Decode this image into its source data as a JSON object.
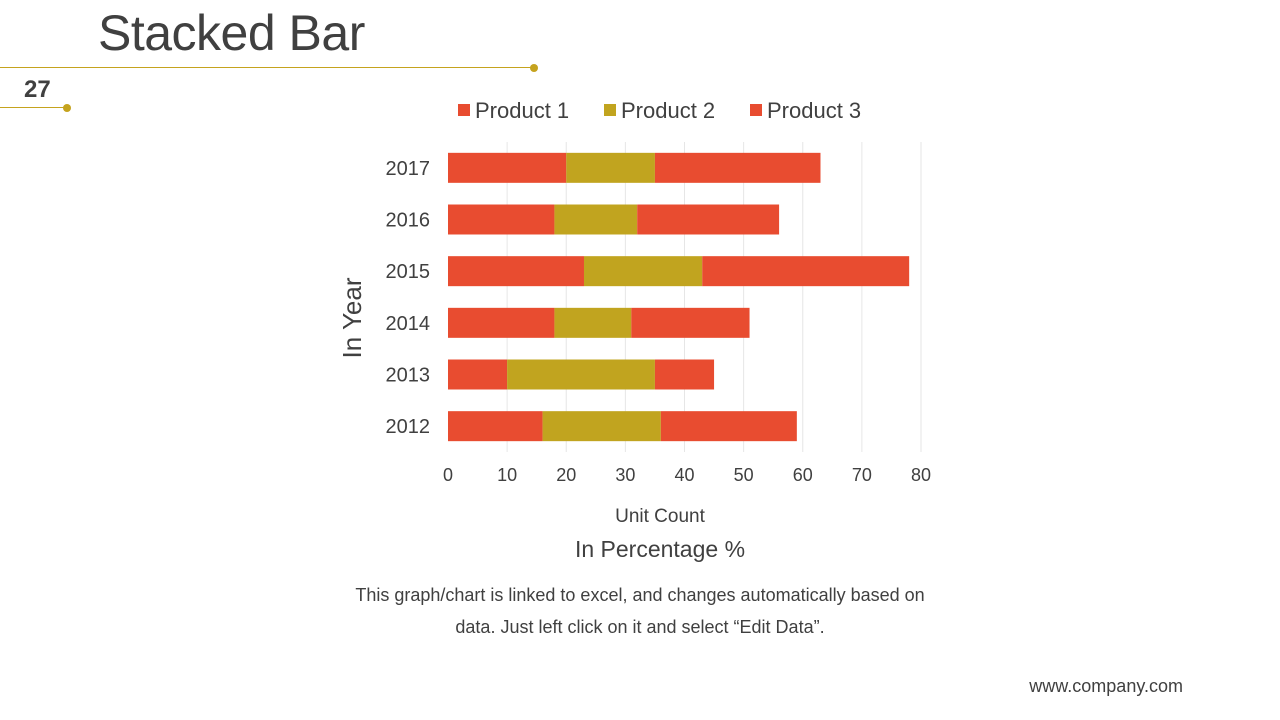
{
  "slide": {
    "title": "Stacked Bar",
    "page_number": "27",
    "footnote_line1": "This graph/chart is linked to excel, and changes automatically based on",
    "footnote_line2": "data. Just left click on it and select “Edit Data”.",
    "footer_url": "www.company.com"
  },
  "colors": {
    "accent": "#c5a31e",
    "product1": "#e84c30",
    "product2": "#c1a41f",
    "product3": "#e84c30",
    "text": "#404040",
    "grid": "#e6e6e6"
  },
  "chart_data": {
    "type": "bar",
    "orientation": "horizontal",
    "stacked": true,
    "categories": [
      "2017",
      "2016",
      "2015",
      "2014",
      "2013",
      "2012"
    ],
    "series": [
      {
        "name": "Product 1",
        "values": [
          20,
          18,
          23,
          18,
          10,
          16
        ]
      },
      {
        "name": "Product 2",
        "values": [
          15,
          14,
          20,
          13,
          25,
          20
        ]
      },
      {
        "name": "Product 3",
        "values": [
          28,
          24,
          35,
          20,
          10,
          23
        ]
      }
    ],
    "xlim": [
      0,
      80
    ],
    "xticks": [
      "0",
      "10",
      "20",
      "30",
      "40",
      "50",
      "60",
      "70",
      "80"
    ],
    "xlabel": "Unit Count",
    "ylabel": "In Year",
    "subtitle": "In Percentage %",
    "legend_position": "top",
    "grid": true
  }
}
